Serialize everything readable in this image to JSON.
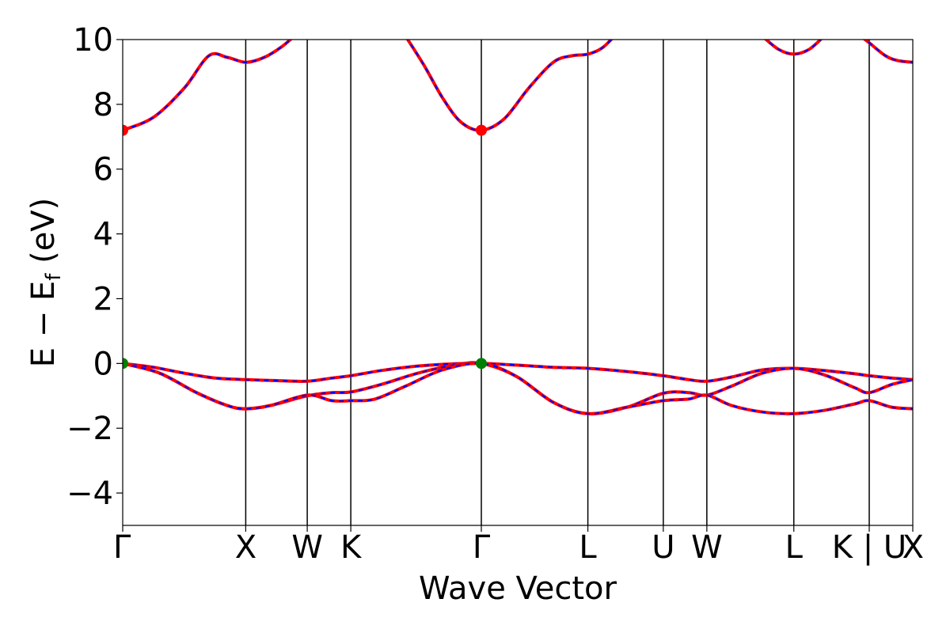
{
  "chart_data": {
    "type": "line",
    "xlabel": "Wave Vector",
    "ylabel_main": "E − E",
    "ylabel_sub": "f",
    "ylabel_unit": " (eV)",
    "ylim": [
      -5,
      10
    ],
    "yticks": [
      {
        "value": 10,
        "label": "10"
      },
      {
        "value": 8,
        "label": "8"
      },
      {
        "value": 6,
        "label": "6"
      },
      {
        "value": 4,
        "label": "4"
      },
      {
        "value": 2,
        "label": "2"
      },
      {
        "value": 0,
        "label": "0"
      },
      {
        "value": -2,
        "label": "−2"
      },
      {
        "value": -4,
        "label": "−4"
      }
    ],
    "kpath_ticks": [
      {
        "value": 0,
        "label": "Γ"
      },
      {
        "value": 1.0,
        "label": "X"
      },
      {
        "value": 1.5,
        "label": "W"
      },
      {
        "value": 1.854,
        "label": "K"
      },
      {
        "value": 2.915,
        "label": "Γ"
      },
      {
        "value": 3.781,
        "label": "L"
      },
      {
        "value": 4.394,
        "label": "U"
      },
      {
        "value": 4.748,
        "label": "W"
      },
      {
        "value": 5.455,
        "label": "L"
      },
      {
        "value": 6.068,
        "label": "K | U"
      },
      {
        "value": 6.422,
        "label": "X"
      }
    ],
    "xlim": [
      0,
      6.422
    ],
    "line_colors": {
      "series_a": "#ff0000",
      "series_b": "#0000ff"
    },
    "band_extrema": [
      {
        "x": 0,
        "y": 7.2,
        "color": "#ff0000"
      },
      {
        "x": 2.915,
        "y": 7.2,
        "color": "#ff0000"
      },
      {
        "x": 0,
        "y": 0,
        "color": "#008000"
      },
      {
        "x": 2.915,
        "y": 0,
        "color": "#008000"
      }
    ],
    "bands": [
      {
        "x": [
          0,
          0.25,
          0.5,
          0.7,
          0.85,
          1.0,
          1.15,
          1.3,
          1.42
        ],
        "y": [
          7.2,
          7.6,
          8.5,
          9.5,
          9.45,
          9.3,
          9.45,
          9.8,
          10.2
        ]
      },
      {
        "x": [
          2.3,
          2.45,
          2.6,
          2.75,
          2.915,
          3.1,
          3.3,
          3.5,
          3.65,
          3.781,
          3.9,
          4.02
        ],
        "y": [
          10.1,
          9.2,
          8.2,
          7.45,
          7.2,
          7.55,
          8.5,
          9.3,
          9.5,
          9.55,
          9.75,
          10.2
        ]
      },
      {
        "x": [
          5.2,
          5.33,
          5.455,
          5.58,
          5.7
        ],
        "y": [
          10.1,
          9.7,
          9.55,
          9.7,
          10.1
        ]
      },
      {
        "x": [
          6.0,
          6.068,
          6.2,
          6.3,
          6.422
        ],
        "y": [
          10.1,
          9.9,
          9.5,
          9.35,
          9.3
        ]
      },
      {
        "x": [
          0,
          0.25,
          0.5,
          0.75,
          1.0,
          1.25,
          1.5,
          1.7,
          1.854,
          2.1,
          2.4,
          2.7,
          2.915,
          3.2,
          3.5,
          3.781,
          4.1,
          4.394,
          4.6,
          4.748,
          4.95,
          5.2,
          5.455,
          5.7,
          5.95,
          6.068,
          6.25,
          6.422
        ],
        "y": [
          0,
          -0.12,
          -0.3,
          -0.45,
          -0.5,
          -0.53,
          -0.55,
          -0.45,
          -0.38,
          -0.22,
          -0.08,
          -0.01,
          0,
          -0.05,
          -0.12,
          -0.15,
          -0.25,
          -0.38,
          -0.5,
          -0.55,
          -0.42,
          -0.2,
          -0.15,
          -0.22,
          -0.32,
          -0.38,
          -0.45,
          -0.5
        ]
      },
      {
        "x": [
          0,
          0.3,
          0.6,
          0.85,
          1.0,
          1.2,
          1.5,
          1.7,
          1.854,
          2.1,
          2.4,
          2.7,
          2.915,
          3.2,
          3.5,
          3.781,
          4.1,
          4.394,
          4.6,
          4.748,
          4.95,
          5.2,
          5.455,
          5.7,
          5.95,
          6.068,
          6.25,
          6.422
        ],
        "y": [
          0,
          -0.3,
          -0.9,
          -1.3,
          -1.4,
          -1.3,
          -1.0,
          -0.9,
          -0.88,
          -0.65,
          -0.3,
          -0.05,
          0,
          -0.4,
          -1.2,
          -1.55,
          -1.35,
          -0.92,
          -0.9,
          -0.98,
          -0.7,
          -0.3,
          -0.15,
          -0.35,
          -0.75,
          -0.9,
          -0.65,
          -0.5
        ]
      },
      {
        "x": [
          0,
          0.3,
          0.6,
          0.85,
          1.0,
          1.2,
          1.5,
          1.7,
          1.854,
          2.05,
          2.3,
          2.6,
          2.915,
          3.2,
          3.5,
          3.781,
          4.1,
          4.394,
          4.6,
          4.748,
          4.95,
          5.2,
          5.455,
          5.7,
          5.95,
          6.068,
          6.25,
          6.422
        ],
        "y": [
          0,
          -0.3,
          -0.9,
          -1.3,
          -1.4,
          -1.3,
          -0.98,
          -1.15,
          -1.15,
          -1.1,
          -0.7,
          -0.2,
          0,
          -0.4,
          -1.2,
          -1.55,
          -1.35,
          -1.15,
          -1.1,
          -0.98,
          -1.3,
          -1.5,
          -1.55,
          -1.45,
          -1.25,
          -1.15,
          -1.35,
          -1.4
        ]
      }
    ]
  }
}
